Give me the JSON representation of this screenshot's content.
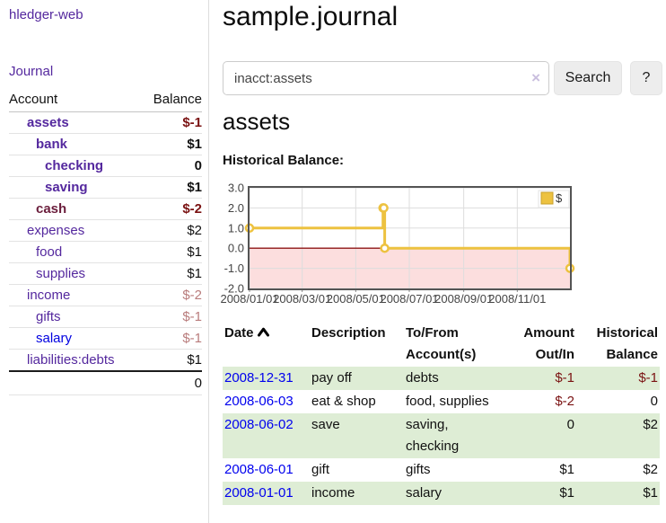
{
  "sidebar": {
    "app_title": "hledger-web",
    "journal_link": "Journal",
    "accounts_table": {
      "headers": {
        "account": "Account",
        "balance": "Balance"
      },
      "rows": [
        {
          "name": "assets",
          "indent": 1,
          "bold": true,
          "name_color": "#54289e",
          "balance": "$-1",
          "balance_color": "#7a1212"
        },
        {
          "name": "bank",
          "indent": 2,
          "bold": true,
          "name_color": "#54289e",
          "balance": "$1",
          "balance_color": "#111111"
        },
        {
          "name": "checking",
          "indent": 3,
          "bold": true,
          "name_color": "#54289e",
          "balance": "0",
          "balance_color": "#111111"
        },
        {
          "name": "saving",
          "indent": 3,
          "bold": true,
          "name_color": "#54289e",
          "balance": "$1",
          "balance_color": "#111111"
        },
        {
          "name": "cash",
          "indent": 2,
          "bold": true,
          "name_color": "#6b1e3c",
          "balance": "$-2",
          "balance_color": "#7a1212"
        },
        {
          "name": "expenses",
          "indent": 1,
          "bold": false,
          "name_color": "#54289e",
          "balance": "$2",
          "balance_color": "#111111"
        },
        {
          "name": "food",
          "indent": 2,
          "bold": false,
          "name_color": "#54289e",
          "balance": "$1",
          "balance_color": "#111111"
        },
        {
          "name": "supplies",
          "indent": 2,
          "bold": false,
          "name_color": "#54289e",
          "balance": "$1",
          "balance_color": "#111111"
        },
        {
          "name": "income",
          "indent": 1,
          "bold": false,
          "name_color": "#54289e",
          "balance": "$-2",
          "balance_color": "#b97c7c"
        },
        {
          "name": "gifts",
          "indent": 2,
          "bold": false,
          "name_color": "#54289e",
          "balance": "$-1",
          "balance_color": "#b97c7c"
        },
        {
          "name": "salary",
          "indent": 2,
          "bold": false,
          "name_color": "#0000e0",
          "balance": "$-1",
          "balance_color": "#b97c7c"
        },
        {
          "name": "liabilities:debts",
          "indent": 1,
          "bold": false,
          "name_color": "#54289e",
          "balance": "$1",
          "balance_color": "#111111"
        }
      ],
      "total": "0"
    }
  },
  "main": {
    "title": "sample.journal",
    "search": {
      "value": "inacct:assets",
      "clear_icon": "×",
      "button_label": "Search",
      "help_label": "?"
    },
    "account_heading": "assets",
    "chart_label": "Historical Balance:",
    "transactions": {
      "headers": [
        "Date",
        "Description",
        "To/From Account(s)",
        "Amount Out/In",
        "Historical Balance"
      ],
      "sort_icon": "chevron-up",
      "rows": [
        {
          "date": "2008-12-31",
          "description": "pay off",
          "accounts": "debts",
          "amount": "$-1",
          "amount_negative": true,
          "balance": "$-1",
          "balance_negative": true
        },
        {
          "date": "2008-06-03",
          "description": "eat & shop",
          "accounts": "food, supplies",
          "amount": "$-2",
          "amount_negative": true,
          "balance": "0",
          "balance_negative": false
        },
        {
          "date": "2008-06-02",
          "description": "save",
          "accounts": "saving, checking",
          "amount": "0",
          "amount_negative": false,
          "balance": "$2",
          "balance_negative": false
        },
        {
          "date": "2008-06-01",
          "description": "gift",
          "accounts": "gifts",
          "amount": "$1",
          "amount_negative": false,
          "balance": "$2",
          "balance_negative": false
        },
        {
          "date": "2008-01-01",
          "description": "income",
          "accounts": "salary",
          "amount": "$1",
          "amount_negative": false,
          "balance": "$1",
          "balance_negative": false
        }
      ]
    }
  },
  "chart_data": {
    "type": "line",
    "title": "Historical Balance:",
    "step": true,
    "series": [
      {
        "name": "$",
        "color": "#edc240",
        "points": [
          [
            "2008-01-01",
            1
          ],
          [
            "2008-06-01",
            2
          ],
          [
            "2008-06-02",
            2
          ],
          [
            "2008-06-03",
            0
          ],
          [
            "2008-12-31",
            -1
          ]
        ]
      }
    ],
    "xlim": [
      "2008-01-01",
      "2008-12-31"
    ],
    "ylim": [
      -2,
      3
    ],
    "y_ticks": [
      3.0,
      2.0,
      1.0,
      0.0,
      -1.0,
      -2.0
    ],
    "x_ticks": [
      "2008/01/01",
      "2008/03/01",
      "2008/05/01",
      "2008/07/01",
      "2008/09/01",
      "2008/11/01"
    ],
    "legend": {
      "label": "$",
      "position": "top-right"
    },
    "grid": true,
    "negative_region_color": "#fcdede",
    "zero_line_color": "#8f1414",
    "marker": "open-circle"
  },
  "colors": {
    "link_purple": "#54289e",
    "link_blue": "#0000e0",
    "negative_red": "#7a1212",
    "faded_negative": "#b97c7c",
    "row_stripe_green": "#deedd5",
    "button_bg": "#ededed",
    "chart_line": "#edc240"
  }
}
